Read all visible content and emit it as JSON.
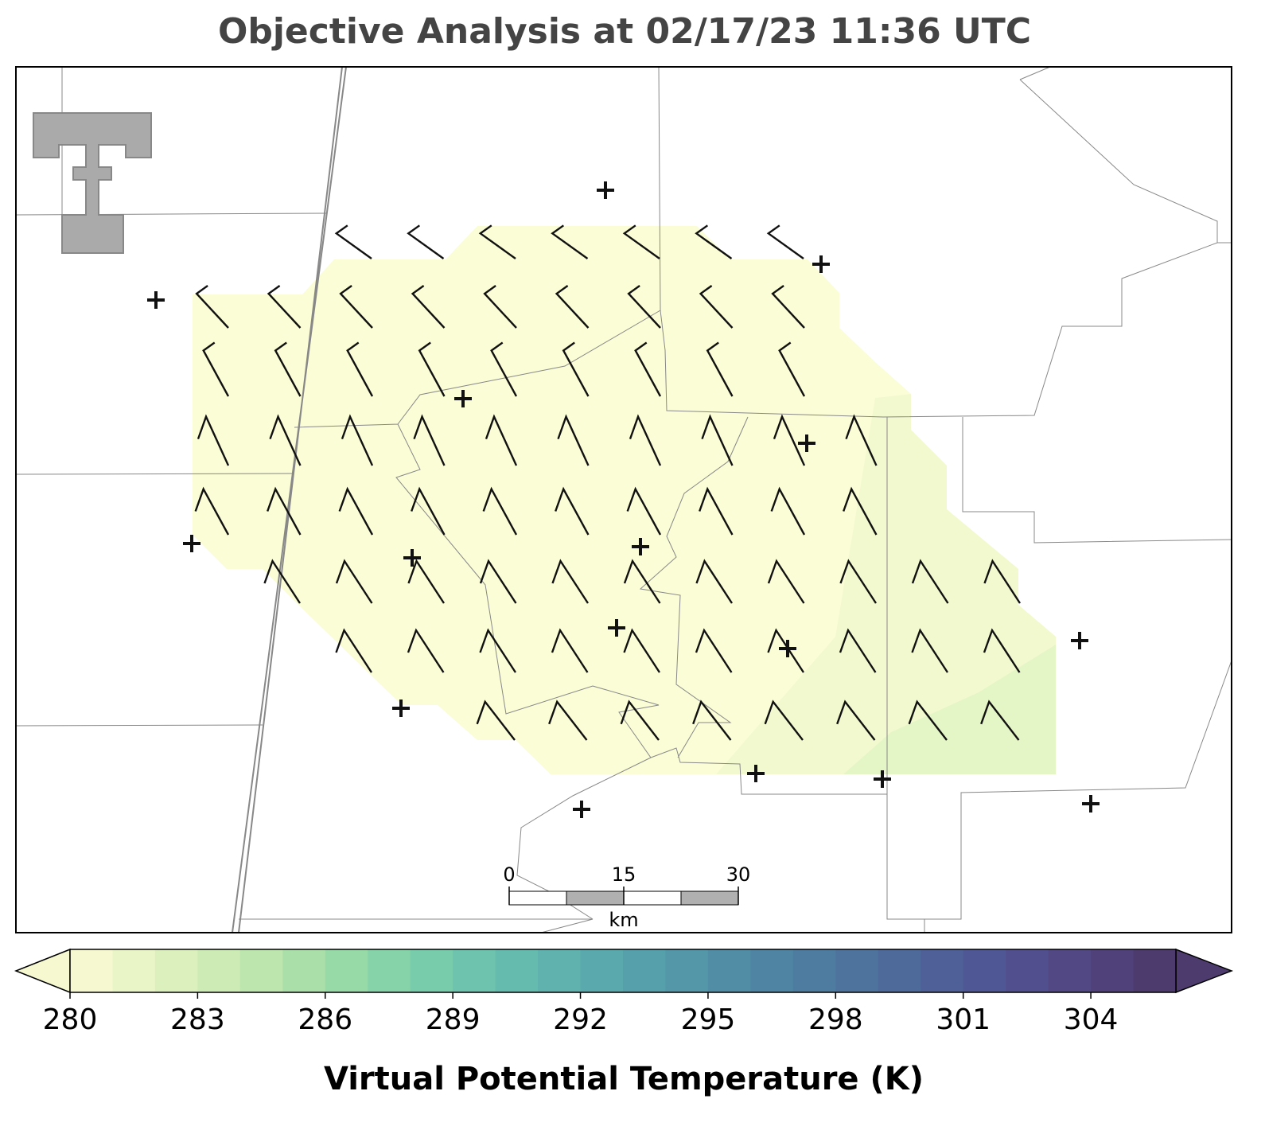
{
  "title": "Objective Analysis at 02/17/23 11:36 UTC",
  "colorbar": {
    "label": "Virtual Potential Temperature (K)",
    "levels": [
      280,
      281,
      282,
      283,
      284,
      285,
      286,
      287,
      288,
      289,
      290,
      291,
      292,
      293,
      294,
      295,
      296,
      297,
      298,
      299,
      300,
      301,
      302,
      303,
      304,
      305,
      306
    ],
    "ticks": [
      280,
      283,
      286,
      289,
      292,
      295,
      298,
      301,
      304
    ],
    "colors": [
      "#f6f9d0",
      "#eaf5c7",
      "#dcf0be",
      "#cdebb5",
      "#bde5ae",
      "#abdfaa",
      "#98d9a8",
      "#86d2a9",
      "#78cbab",
      "#6dc3ad",
      "#65bbae",
      "#5fb2ae",
      "#5aa9ad",
      "#56a0ab",
      "#5397a9",
      "#518ea6",
      "#4f85a3",
      "#4e7ca0",
      "#4e739d",
      "#4d6a9a",
      "#4e6097",
      "#505795",
      "#524f8e",
      "#524884",
      "#51417a",
      "#4d3b6e"
    ]
  },
  "scale_bar": {
    "ticks": [
      0,
      15,
      30
    ],
    "unit": "km"
  }
}
